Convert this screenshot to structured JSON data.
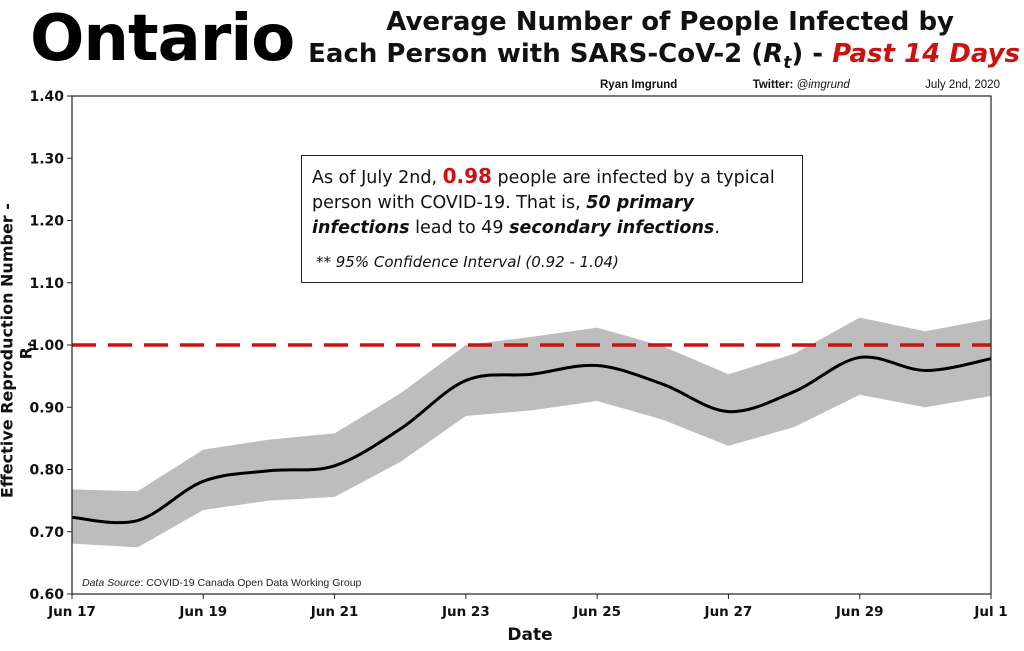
{
  "header": {
    "province": "Ontario",
    "title_line1": "Average Number of People Infected by",
    "title_line2_pre": "Each Person with SARS-CoV-2 (",
    "title_rt": "R",
    "title_rt_sub": "t",
    "title_line2_post": ") - ",
    "title_highlight": "Past 14 Days"
  },
  "byline": {
    "author": "Ryan Imgrund",
    "twitter_label": "Twitter:",
    "twitter_handle": "@imgrund",
    "date": "July 2nd, 2020"
  },
  "annotation": {
    "p1": "As of July 2nd, ",
    "value": "0.98",
    "p2": " people are infected by a typical person with COVID-19. That is, ",
    "e1": "50 primary infections",
    "p3": " lead to 49 ",
    "e2": "secondary infections",
    "p4": ".",
    "ci": "** 95% Confidence Interval (0.92 - 1.04)"
  },
  "source": {
    "label": "Data Source",
    "text": ": COVID-19 Canada Open Data Working Group"
  },
  "colors": {
    "line": "#000000",
    "band": "#bdbdbd",
    "threshold": "#cc1111",
    "highlight": "#cc1111"
  },
  "chart_data": {
    "type": "line",
    "xlabel": "Date",
    "ylabel": "Effective Reproduction Number - R",
    "ylabel_sub": "t",
    "ylim": [
      0.6,
      1.4
    ],
    "yticks": [
      "0.60",
      "0.70",
      "0.80",
      "0.90",
      "1.00",
      "1.10",
      "1.20",
      "1.30",
      "1.40"
    ],
    "x": [
      "Jun 17",
      "Jun 18",
      "Jun 19",
      "Jun 20",
      "Jun 21",
      "Jun 22",
      "Jun 23",
      "Jun 24",
      "Jun 25",
      "Jun 26",
      "Jun 27",
      "Jun 28",
      "Jun 29",
      "Jun 30",
      "Jul 1"
    ],
    "xtick_labels": [
      "Jun 17",
      "Jun 19",
      "Jun 21",
      "Jun 23",
      "Jun 25",
      "Jun 27",
      "Jun 29",
      "Jul 1"
    ],
    "series": [
      {
        "values": [
          0.723,
          0.718,
          0.781,
          0.798,
          0.806,
          0.865,
          0.943,
          0.953,
          0.967,
          0.937,
          0.893,
          0.925,
          0.98,
          0.959,
          0.978
        ]
      }
    ],
    "ci_lower": [
      0.681,
      0.675,
      0.735,
      0.75,
      0.756,
      0.812,
      0.886,
      0.895,
      0.91,
      0.88,
      0.838,
      0.868,
      0.92,
      0.9,
      0.918
    ],
    "ci_upper": [
      0.768,
      0.765,
      0.832,
      0.848,
      0.858,
      0.922,
      1.0,
      1.013,
      1.028,
      0.998,
      0.953,
      0.986,
      1.044,
      1.022,
      1.042
    ],
    "threshold": 1.0,
    "grid": false
  }
}
